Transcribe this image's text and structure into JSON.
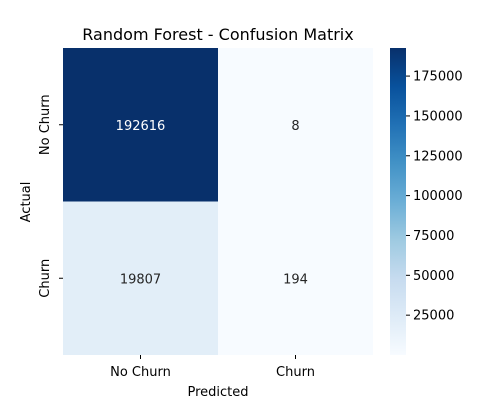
{
  "chart_data": {
    "type": "heatmap",
    "title": "Random Forest - Confusion Matrix",
    "xlabel": "Predicted",
    "ylabel": "Actual",
    "x_categories": [
      "No Churn",
      "Churn"
    ],
    "y_categories": [
      "No Churn",
      "Churn"
    ],
    "values": [
      [
        192616,
        8
      ],
      [
        19807,
        194
      ]
    ],
    "colormap": "Blues",
    "colorbar": {
      "range": [
        8,
        192616
      ],
      "ticks": [
        25000,
        50000,
        75000,
        100000,
        125000,
        150000,
        175000
      ],
      "tick_labels": [
        "25000",
        "50000",
        "75000",
        "100000",
        "125000",
        "150000",
        "175000"
      ]
    },
    "colors": {
      "low": "#f7fbff",
      "high": "#08306b",
      "text_on_dark": "#ffffff",
      "text_on_light": "#262626"
    }
  }
}
